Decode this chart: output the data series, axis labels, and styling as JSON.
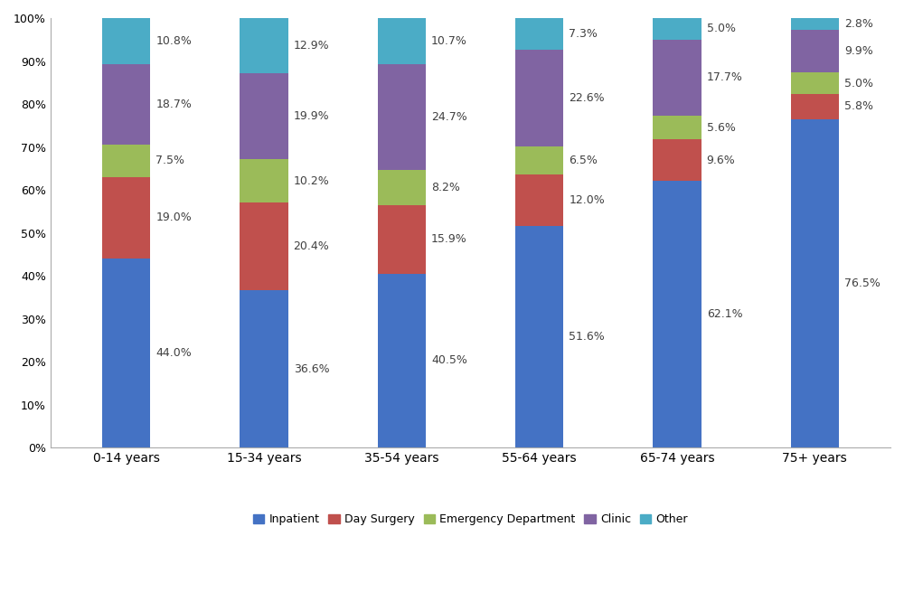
{
  "categories": [
    "0-14 years",
    "15-34 years",
    "35-54 years",
    "55-64 years",
    "65-74 years",
    "75+ years"
  ],
  "series": {
    "Inpatient": [
      44.0,
      36.6,
      40.5,
      51.6,
      62.1,
      76.5
    ],
    "Day Surgery": [
      19.0,
      20.4,
      15.9,
      12.0,
      9.6,
      5.8
    ],
    "Emergency Department": [
      7.5,
      10.2,
      8.2,
      6.5,
      5.6,
      5.0
    ],
    "Clinic": [
      18.7,
      19.9,
      24.7,
      22.6,
      17.7,
      9.9
    ],
    "Other": [
      10.8,
      12.9,
      10.7,
      7.3,
      5.0,
      2.8
    ]
  },
  "colors": {
    "Inpatient": "#4472C4",
    "Day Surgery": "#C0504D",
    "Emergency Department": "#9BBB59",
    "Clinic": "#8064A2",
    "Other": "#4BACC6"
  },
  "ytick_labels": [
    "0%",
    "10%",
    "20%",
    "30%",
    "40%",
    "50%",
    "60%",
    "70%",
    "80%",
    "90%",
    "100%"
  ],
  "yticks": [
    0,
    10,
    20,
    30,
    40,
    50,
    60,
    70,
    80,
    90,
    100
  ],
  "bar_width": 0.35,
  "figsize": [
    10.0,
    6.66
  ],
  "dpi": 100,
  "background_color": "#FFFFFF",
  "text_color": "#404040",
  "fontsize_labels": 9,
  "fontsize_ticks": 9,
  "fontsize_legend": 9,
  "fontsize_xticks": 10
}
